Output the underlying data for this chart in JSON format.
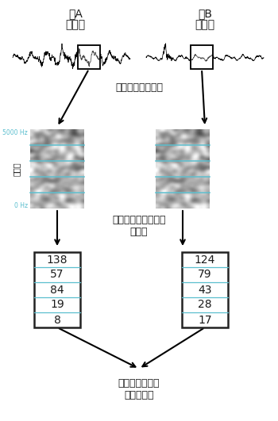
{
  "title_a": "音A",
  "subtitle_a": "「た」",
  "title_b": "音B",
  "subtitle_b": "「だ」",
  "label_decompose": "単純な波形に分解",
  "label_quantize": "各波を周波数ごとに\n数値化",
  "label_analyze": "数値比較による\n総合的解析",
  "freq_high": "5000 Hz",
  "freq_low": "0 Hz",
  "freq_label": "周波数",
  "values_a": [
    138,
    57,
    84,
    19,
    8
  ],
  "values_b": [
    124,
    79,
    43,
    28,
    17
  ],
  "bg_color": "#ffffff",
  "text_color": "#1a1a1a",
  "cyan_color": "#5bbfcf",
  "table_border_color": "#222222",
  "font_name": "Noto Sans CJK JP",
  "font_fallback": "IPAexGothic"
}
